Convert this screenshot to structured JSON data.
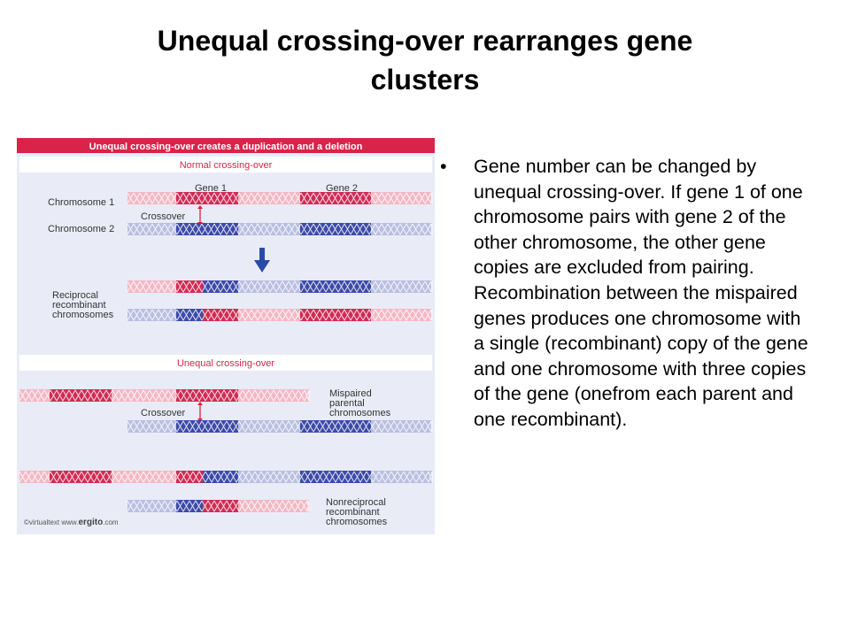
{
  "slide": {
    "title_line1": "Unequal crossing-over rearranges gene",
    "title_line2": "clusters",
    "bullet_symbol": "•",
    "bullet_text": "Gene number can be changed by unequal crossing-over. If gene 1 of one chromosome pairs with gene 2 of the other chromosome, the other gene copies are excluded from pairing. Recombination between the mispaired genes produces one chromosome with a single (recombinant) copy of the gene and one chromosome with three copies of the gene (onefrom each parent and one recombinant)."
  },
  "figure": {
    "header": "Unequal crossing-over creates a duplication and a deletion",
    "normal_section_title": "Normal crossing-over",
    "unequal_section_title": "Unequal crossing-over",
    "labels": {
      "gene1": "Gene 1",
      "gene2": "Gene 2",
      "chromosome1": "Chromosome 1",
      "chromosome2": "Chromosome 2",
      "crossover": "Crossover",
      "reciprocal": [
        "Reciprocal",
        "recombinant",
        "chromosomes"
      ],
      "mispaired": [
        "Mispaired",
        "parental",
        "chromosomes"
      ],
      "nonreciprocal": [
        "Nonreciprocal",
        "recombinant",
        "chromosomes"
      ]
    },
    "credit_prefix": "©virtualtext  www.",
    "credit_brand": "ergito",
    "credit_suffix": ".com",
    "colors": {
      "header_bg": "#d8244a",
      "panel_bg": "#e9ecf6",
      "section_title": "#d8244a",
      "red_light": "#f3b8c5",
      "red_dark": "#cf2c55",
      "blue_light": "#b9bfe0",
      "blue_dark": "#3c4aa7",
      "arrow_blue": "#2a4aa8",
      "crossover_arrow": "#e0203a"
    },
    "icons": {
      "down_arrow": "down-arrow-icon",
      "crossover_arrow": "double-headed-arrow-icon"
    }
  }
}
